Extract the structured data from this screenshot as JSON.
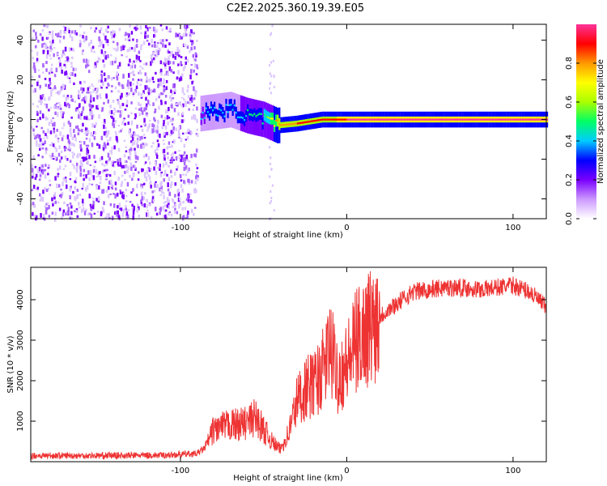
{
  "title": "C2E2.2025.360.19.39.E05",
  "chart_data": [
    {
      "type": "heatmap",
      "xlabel": "Height of straight line (km)",
      "ylabel": "Frequency (Hz)",
      "xlim": [
        -190,
        120
      ],
      "ylim": [
        -50,
        48
      ],
      "xticks": [
        -100,
        0,
        100
      ],
      "yticks": [
        -40,
        -20,
        0,
        20,
        40
      ],
      "colorbar": {
        "label": "Normalized spectral amplitude",
        "range": [
          0,
          1
        ],
        "ticks": [
          "0.0",
          "0.2",
          "0.4",
          "0.6",
          "0.8"
        ],
        "colors": [
          "#ffffff",
          "#cc99ff",
          "#7a00ff",
          "#0000ff",
          "#00ccff",
          "#00ff66",
          "#aaff00",
          "#ffff00",
          "#ff9900",
          "#ff0000",
          "#ff3399"
        ]
      },
      "ridge": [
        {
          "x": -88,
          "freq": 3,
          "amp": 0.35
        },
        {
          "x": -70,
          "freq": 5,
          "amp": 0.4
        },
        {
          "x": -60,
          "freq": 2,
          "amp": 0.45
        },
        {
          "x": -50,
          "freq": 0,
          "amp": 0.5
        },
        {
          "x": -42,
          "freq": -3,
          "amp": 0.8
        },
        {
          "x": -30,
          "freq": -2,
          "amp": 0.85
        },
        {
          "x": -15,
          "freq": 0,
          "amp": 0.9
        },
        {
          "x": 0,
          "freq": 0,
          "amp": 0.95
        },
        {
          "x": 50,
          "freq": 0,
          "amp": 0.95
        },
        {
          "x": 120,
          "freq": 0,
          "amp": 0.95
        }
      ]
    },
    {
      "type": "line",
      "xlabel": "Height of straight line (km)",
      "ylabel": "SNR (10 * v/v)",
      "xlim": [
        -190,
        120
      ],
      "ylim": [
        0,
        4800
      ],
      "xticks": [
        -100,
        0,
        100
      ],
      "yticks": [
        1000,
        2000,
        3000,
        4000
      ],
      "series": [
        {
          "name": "SNR",
          "color": "#ee3333",
          "x": [
            -190,
            -150,
            -110,
            -90,
            -85,
            -80,
            -70,
            -60,
            -55,
            -50,
            -45,
            -40,
            -35,
            -30,
            -25,
            -20,
            -15,
            -10,
            -5,
            0,
            5,
            10,
            20,
            30,
            40,
            50,
            60,
            70,
            80,
            90,
            100,
            110,
            115,
            120
          ],
          "y": [
            150,
            150,
            160,
            200,
            350,
            800,
            900,
            950,
            1100,
            800,
            500,
            300,
            700,
            1500,
            1800,
            1900,
            2200,
            2800,
            2100,
            2400,
            2900,
            3200,
            3600,
            3900,
            4200,
            4250,
            4300,
            4300,
            4250,
            4300,
            4350,
            4200,
            4000,
            3800
          ]
        }
      ]
    }
  ]
}
